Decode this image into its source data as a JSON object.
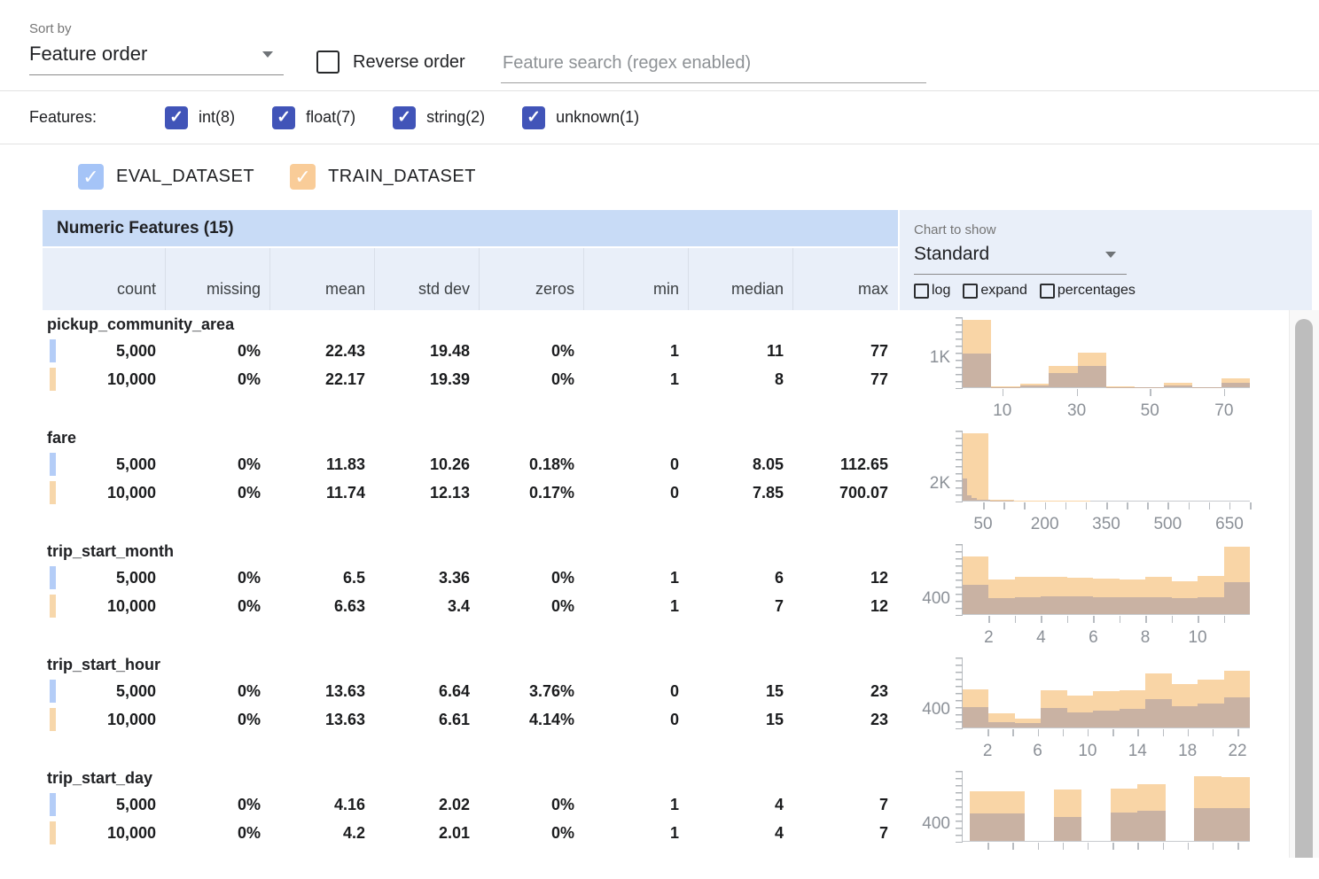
{
  "toolbar": {
    "sort_by_label": "Sort by",
    "sort_by_value": "Feature order",
    "reverse_label": "Reverse order",
    "search_placeholder": "Feature search (regex enabled)"
  },
  "filters": {
    "label": "Features:",
    "items": [
      {
        "label": "int(8)",
        "checked": true
      },
      {
        "label": "float(7)",
        "checked": true
      },
      {
        "label": "string(2)",
        "checked": true
      },
      {
        "label": "unknown(1)",
        "checked": true
      }
    ]
  },
  "datasets": [
    {
      "name": "EVAL_DATASET",
      "checked": true,
      "color": "#a5c4f7",
      "marker": "#b4cdf7"
    },
    {
      "name": "TRAIN_DATASET",
      "checked": true,
      "color": "#f9cc98",
      "marker": "#f7d7ab"
    }
  ],
  "table": {
    "title": "Numeric Features (15)",
    "columns": [
      "count",
      "missing",
      "mean",
      "std dev",
      "zeros",
      "min",
      "median",
      "max"
    ]
  },
  "chart_controls": {
    "label": "Chart to show",
    "value": "Standard",
    "options": [
      {
        "label": "log",
        "checked": false
      },
      {
        "label": "expand",
        "checked": false
      },
      {
        "label": "percentages",
        "checked": false
      }
    ]
  },
  "features": [
    {
      "name": "pickup_community_area",
      "rows": [
        {
          "dataset": "eval",
          "values": [
            "5,000",
            "0%",
            "22.43",
            "19.48",
            "0%",
            "1",
            "11",
            "77"
          ]
        },
        {
          "dataset": "train",
          "values": [
            "10,000",
            "0%",
            "22.17",
            "19.39",
            "0%",
            "1",
            "8",
            "77"
          ]
        }
      ]
    },
    {
      "name": "fare",
      "rows": [
        {
          "dataset": "eval",
          "values": [
            "5,000",
            "0%",
            "11.83",
            "10.26",
            "0.18%",
            "0",
            "8.05",
            "112.65"
          ]
        },
        {
          "dataset": "train",
          "values": [
            "10,000",
            "0%",
            "11.74",
            "12.13",
            "0.17%",
            "0",
            "7.85",
            "700.07"
          ]
        }
      ]
    },
    {
      "name": "trip_start_month",
      "rows": [
        {
          "dataset": "eval",
          "values": [
            "5,000",
            "0%",
            "6.5",
            "3.36",
            "0%",
            "1",
            "6",
            "12"
          ]
        },
        {
          "dataset": "train",
          "values": [
            "10,000",
            "0%",
            "6.63",
            "3.4",
            "0%",
            "1",
            "7",
            "12"
          ]
        }
      ]
    },
    {
      "name": "trip_start_hour",
      "rows": [
        {
          "dataset": "eval",
          "values": [
            "5,000",
            "0%",
            "13.63",
            "6.64",
            "3.76%",
            "0",
            "15",
            "23"
          ]
        },
        {
          "dataset": "train",
          "values": [
            "10,000",
            "0%",
            "13.63",
            "6.61",
            "4.14%",
            "0",
            "15",
            "23"
          ]
        }
      ]
    },
    {
      "name": "trip_start_day",
      "rows": [
        {
          "dataset": "eval",
          "values": [
            "5,000",
            "0%",
            "4.16",
            "2.02",
            "0%",
            "1",
            "4",
            "7"
          ]
        },
        {
          "dataset": "train",
          "values": [
            "10,000",
            "0%",
            "4.2",
            "2.01",
            "0%",
            "1",
            "4",
            "7"
          ]
        }
      ]
    }
  ],
  "chart_data": [
    {
      "type": "bar",
      "feature": "pickup_community_area",
      "ymax": 2400,
      "ytick_label": "1K",
      "ytick_value": 1000,
      "xticks": [
        {
          "pos": 13.8,
          "label": "10"
        },
        {
          "pos": 39.7,
          "label": "30"
        },
        {
          "pos": 65.2,
          "label": "50"
        },
        {
          "pos": 91.0,
          "label": "70"
        }
      ],
      "train_bars": [
        {
          "x": 0,
          "w": 10,
          "v": 2300
        },
        {
          "x": 10,
          "w": 10,
          "v": 30
        },
        {
          "x": 20,
          "w": 10,
          "v": 120
        },
        {
          "x": 30,
          "w": 10,
          "v": 730
        },
        {
          "x": 40,
          "w": 10,
          "v": 1200
        },
        {
          "x": 50,
          "w": 10,
          "v": 20
        },
        {
          "x": 60,
          "w": 10,
          "v": 15
        },
        {
          "x": 70,
          "w": 10,
          "v": 140
        },
        {
          "x": 80,
          "w": 10,
          "v": 15
        },
        {
          "x": 90,
          "w": 10,
          "v": 300
        }
      ],
      "eval_bars": [
        {
          "x": 0,
          "w": 10,
          "v": 1170
        },
        {
          "x": 10,
          "w": 10,
          "v": 15
        },
        {
          "x": 20,
          "w": 10,
          "v": 55
        },
        {
          "x": 30,
          "w": 10,
          "v": 480
        },
        {
          "x": 40,
          "w": 10,
          "v": 720
        },
        {
          "x": 50,
          "w": 10,
          "v": 10
        },
        {
          "x": 60,
          "w": 10,
          "v": 8
        },
        {
          "x": 70,
          "w": 10,
          "v": 60
        },
        {
          "x": 80,
          "w": 10,
          "v": 8
        },
        {
          "x": 90,
          "w": 10,
          "v": 140
        }
      ]
    },
    {
      "type": "bar",
      "feature": "fare",
      "ymax": 8600,
      "ytick_label": "2K",
      "ytick_value": 2000,
      "xticks": [
        {
          "pos": 7.1,
          "label": "50"
        },
        {
          "pos": 14.3,
          "label": ""
        },
        {
          "pos": 21.4,
          "label": ""
        },
        {
          "pos": 28.6,
          "label": "200"
        },
        {
          "pos": 35.7,
          "label": ""
        },
        {
          "pos": 42.9,
          "label": ""
        },
        {
          "pos": 50,
          "label": "350"
        },
        {
          "pos": 57.1,
          "label": ""
        },
        {
          "pos": 64.3,
          "label": ""
        },
        {
          "pos": 71.4,
          "label": "500"
        },
        {
          "pos": 78.6,
          "label": ""
        },
        {
          "pos": 85.7,
          "label": ""
        },
        {
          "pos": 92.9,
          "label": "650"
        },
        {
          "pos": 100,
          "label": ""
        }
      ],
      "train_bars": [
        {
          "x": 0,
          "w": 8.9,
          "v": 8300
        },
        {
          "x": 8.9,
          "w": 8.9,
          "v": 60
        },
        {
          "x": 17.8,
          "w": 8.9,
          "v": 25
        },
        {
          "x": 26.7,
          "w": 8.9,
          "v": 15
        },
        {
          "x": 35.6,
          "w": 8.9,
          "v": 10
        },
        {
          "x": 44.5,
          "w": 8.9,
          "v": 8
        },
        {
          "x": 53.4,
          "w": 8.9,
          "v": 6
        },
        {
          "x": 62.3,
          "w": 8.9,
          "v": 5
        },
        {
          "x": 71.2,
          "w": 8.9,
          "v": 4
        },
        {
          "x": 80.1,
          "w": 8.9,
          "v": 3
        },
        {
          "x": 89,
          "w": 8.9,
          "v": 3
        }
      ],
      "eval_bars": [
        {
          "x": 0,
          "w": 1.6,
          "v": 2750
        },
        {
          "x": 1.6,
          "w": 1.6,
          "v": 650
        },
        {
          "x": 3.2,
          "w": 1.6,
          "v": 300
        },
        {
          "x": 4.8,
          "w": 1.6,
          "v": 160
        },
        {
          "x": 6.4,
          "w": 1.6,
          "v": 90
        },
        {
          "x": 8,
          "w": 1.6,
          "v": 60
        },
        {
          "x": 9.6,
          "w": 1.6,
          "v": 45
        },
        {
          "x": 11.2,
          "w": 1.6,
          "v": 35
        },
        {
          "x": 12.8,
          "w": 1.6,
          "v": 28
        },
        {
          "x": 14.4,
          "w": 1.6,
          "v": 22
        },
        {
          "x": 16,
          "w": 1.6,
          "v": 18
        }
      ]
    },
    {
      "type": "bar",
      "feature": "trip_start_month",
      "ymax": 1900,
      "ytick_label": "400",
      "ytick_value": 400,
      "xticks": [
        {
          "pos": 9.1,
          "label": "2"
        },
        {
          "pos": 18.2,
          "label": ""
        },
        {
          "pos": 27.3,
          "label": "4"
        },
        {
          "pos": 36.4,
          "label": ""
        },
        {
          "pos": 45.5,
          "label": "6"
        },
        {
          "pos": 54.5,
          "label": ""
        },
        {
          "pos": 63.6,
          "label": "8"
        },
        {
          "pos": 72.7,
          "label": ""
        },
        {
          "pos": 81.8,
          "label": "10"
        },
        {
          "pos": 90.9,
          "label": ""
        }
      ],
      "train_bars": [
        {
          "x": 0,
          "w": 9.09,
          "v": 1560
        },
        {
          "x": 9.09,
          "w": 9.09,
          "v": 930
        },
        {
          "x": 18.18,
          "w": 9.09,
          "v": 1000
        },
        {
          "x": 27.27,
          "w": 9.09,
          "v": 1000
        },
        {
          "x": 36.36,
          "w": 9.09,
          "v": 980
        },
        {
          "x": 45.45,
          "w": 9.09,
          "v": 960
        },
        {
          "x": 54.54,
          "w": 9.09,
          "v": 950
        },
        {
          "x": 63.63,
          "w": 9.09,
          "v": 1020
        },
        {
          "x": 72.72,
          "w": 9.09,
          "v": 900
        },
        {
          "x": 81.81,
          "w": 9.09,
          "v": 1040
        },
        {
          "x": 90.9,
          "w": 9.1,
          "v": 1840
        }
      ],
      "eval_bars": [
        {
          "x": 0,
          "w": 9.09,
          "v": 800
        },
        {
          "x": 9.09,
          "w": 9.09,
          "v": 440
        },
        {
          "x": 18.18,
          "w": 9.09,
          "v": 460
        },
        {
          "x": 27.27,
          "w": 9.09,
          "v": 470
        },
        {
          "x": 36.36,
          "w": 9.09,
          "v": 470
        },
        {
          "x": 45.45,
          "w": 9.09,
          "v": 450
        },
        {
          "x": 54.54,
          "w": 9.09,
          "v": 450
        },
        {
          "x": 63.63,
          "w": 9.09,
          "v": 460
        },
        {
          "x": 72.72,
          "w": 9.09,
          "v": 440
        },
        {
          "x": 81.81,
          "w": 9.09,
          "v": 460
        },
        {
          "x": 90.9,
          "w": 9.1,
          "v": 860
        }
      ]
    },
    {
      "type": "bar",
      "feature": "trip_start_hour",
      "ymax": 1600,
      "ytick_label": "400",
      "ytick_value": 400,
      "xticks": [
        {
          "pos": 8.7,
          "label": "2"
        },
        {
          "pos": 17.4,
          "label": ""
        },
        {
          "pos": 26.1,
          "label": "6"
        },
        {
          "pos": 34.8,
          "label": ""
        },
        {
          "pos": 43.5,
          "label": "10"
        },
        {
          "pos": 52.2,
          "label": ""
        },
        {
          "pos": 60.9,
          "label": "14"
        },
        {
          "pos": 69.6,
          "label": ""
        },
        {
          "pos": 78.3,
          "label": "18"
        },
        {
          "pos": 87,
          "label": ""
        },
        {
          "pos": 95.7,
          "label": "22"
        }
      ],
      "train_bars": [
        {
          "x": 0,
          "w": 9.09,
          "v": 880
        },
        {
          "x": 9.09,
          "w": 9.09,
          "v": 320
        },
        {
          "x": 18.18,
          "w": 9.09,
          "v": 200
        },
        {
          "x": 27.27,
          "w": 9.09,
          "v": 860
        },
        {
          "x": 36.36,
          "w": 9.09,
          "v": 720
        },
        {
          "x": 45.45,
          "w": 9.09,
          "v": 840
        },
        {
          "x": 54.54,
          "w": 9.09,
          "v": 860
        },
        {
          "x": 63.63,
          "w": 9.09,
          "v": 1230
        },
        {
          "x": 72.72,
          "w": 9.09,
          "v": 1000
        },
        {
          "x": 81.81,
          "w": 9.09,
          "v": 1100
        },
        {
          "x": 90.9,
          "w": 9.1,
          "v": 1300
        }
      ],
      "eval_bars": [
        {
          "x": 0,
          "w": 9.09,
          "v": 460
        },
        {
          "x": 9.09,
          "w": 9.09,
          "v": 130
        },
        {
          "x": 18.18,
          "w": 9.09,
          "v": 100
        },
        {
          "x": 27.27,
          "w": 9.09,
          "v": 440
        },
        {
          "x": 36.36,
          "w": 9.09,
          "v": 340
        },
        {
          "x": 45.45,
          "w": 9.09,
          "v": 390
        },
        {
          "x": 54.54,
          "w": 9.09,
          "v": 420
        },
        {
          "x": 63.63,
          "w": 9.09,
          "v": 640
        },
        {
          "x": 72.72,
          "w": 9.09,
          "v": 480
        },
        {
          "x": 81.81,
          "w": 9.09,
          "v": 540
        },
        {
          "x": 90.9,
          "w": 9.1,
          "v": 680
        }
      ]
    },
    {
      "type": "bar",
      "feature": "trip_start_day",
      "ymax": 1650,
      "ytick_label": "400",
      "ytick_value": 400,
      "xticks": [
        {
          "pos": 8.7,
          "label": ""
        },
        {
          "pos": 17.4,
          "label": ""
        },
        {
          "pos": 26.1,
          "label": ""
        },
        {
          "pos": 34.8,
          "label": ""
        },
        {
          "pos": 43.5,
          "label": ""
        },
        {
          "pos": 52.2,
          "label": ""
        },
        {
          "pos": 60.9,
          "label": ""
        },
        {
          "pos": 69.6,
          "label": ""
        },
        {
          "pos": 78.3,
          "label": ""
        },
        {
          "pos": 87,
          "label": ""
        },
        {
          "pos": 95.7,
          "label": ""
        }
      ],
      "train_bars": [
        {
          "x": 2.5,
          "w": 9.2,
          "v": 1180
        },
        {
          "x": 11.7,
          "w": 9.8,
          "v": 1160
        },
        {
          "x": 31.7,
          "w": 9.8,
          "v": 1210
        },
        {
          "x": 51.4,
          "w": 9.5,
          "v": 1240
        },
        {
          "x": 60.9,
          "w": 9.8,
          "v": 1330
        },
        {
          "x": 80.6,
          "w": 9.5,
          "v": 1520
        },
        {
          "x": 90.2,
          "w": 9.8,
          "v": 1500
        }
      ],
      "eval_bars": [
        {
          "x": 2.5,
          "w": 9.2,
          "v": 650
        },
        {
          "x": 11.7,
          "w": 9.8,
          "v": 640
        },
        {
          "x": 31.7,
          "w": 9.8,
          "v": 570
        },
        {
          "x": 51.4,
          "w": 9.5,
          "v": 660
        },
        {
          "x": 60.9,
          "w": 9.8,
          "v": 710
        },
        {
          "x": 80.6,
          "w": 9.5,
          "v": 780
        },
        {
          "x": 90.2,
          "w": 9.8,
          "v": 770
        }
      ]
    }
  ],
  "colors": {
    "accent_checkbox": "#4154b8",
    "hist_train": "#f9d5a6",
    "hist_overlap": "#c9b2a3",
    "table_title_bg": "#c8dbf6",
    "table_head_bg": "#e9eff9"
  }
}
